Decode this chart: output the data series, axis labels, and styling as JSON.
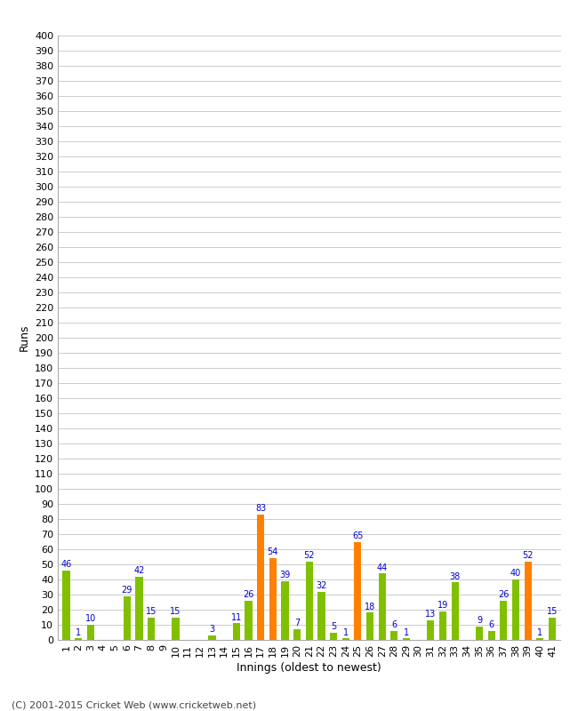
{
  "title": "",
  "xlabel": "Innings (oldest to newest)",
  "ylabel": "Runs",
  "footer": "(C) 2001-2015 Cricket Web (www.cricketweb.net)",
  "ylim": [
    0,
    400
  ],
  "yticks": [
    0,
    10,
    20,
    30,
    40,
    50,
    60,
    70,
    80,
    90,
    100,
    110,
    120,
    130,
    140,
    150,
    160,
    170,
    180,
    190,
    200,
    210,
    220,
    230,
    240,
    250,
    260,
    270,
    280,
    290,
    300,
    310,
    320,
    330,
    340,
    350,
    360,
    370,
    380,
    390,
    400
  ],
  "innings": [
    1,
    2,
    3,
    4,
    5,
    6,
    7,
    8,
    9,
    10,
    11,
    12,
    13,
    14,
    15,
    16,
    17,
    18,
    19,
    20,
    21,
    22,
    23,
    24,
    25,
    26,
    27,
    28,
    29,
    30,
    31,
    32,
    33,
    34,
    35,
    36,
    37,
    38,
    39,
    40,
    41
  ],
  "values": [
    46,
    1,
    10,
    0,
    0,
    29,
    42,
    15,
    0,
    15,
    0,
    0,
    3,
    0,
    11,
    26,
    83,
    54,
    39,
    7,
    52,
    32,
    5,
    1,
    65,
    18,
    44,
    6,
    1,
    0,
    13,
    19,
    38,
    0,
    9,
    6,
    26,
    40,
    52,
    1,
    15
  ],
  "colors": [
    "#80c000",
    "#80c000",
    "#80c000",
    "#80c000",
    "#80c000",
    "#80c000",
    "#80c000",
    "#80c000",
    "#80c000",
    "#80c000",
    "#80c000",
    "#80c000",
    "#80c000",
    "#80c000",
    "#80c000",
    "#80c000",
    "#ff8000",
    "#ff8000",
    "#80c000",
    "#80c000",
    "#80c000",
    "#80c000",
    "#80c000",
    "#80c000",
    "#ff8000",
    "#80c000",
    "#80c000",
    "#80c000",
    "#80c000",
    "#80c000",
    "#80c000",
    "#80c000",
    "#80c000",
    "#80c000",
    "#80c000",
    "#80c000",
    "#80c000",
    "#80c000",
    "#ff8000",
    "#80c000",
    "#80c000"
  ],
  "label_color": "#0000cc",
  "bar_width": 0.6,
  "background_color": "#ffffff",
  "grid_color": "#cccccc",
  "axis_fontsize": 8,
  "label_fontsize": 7,
  "footer_fontsize": 8
}
